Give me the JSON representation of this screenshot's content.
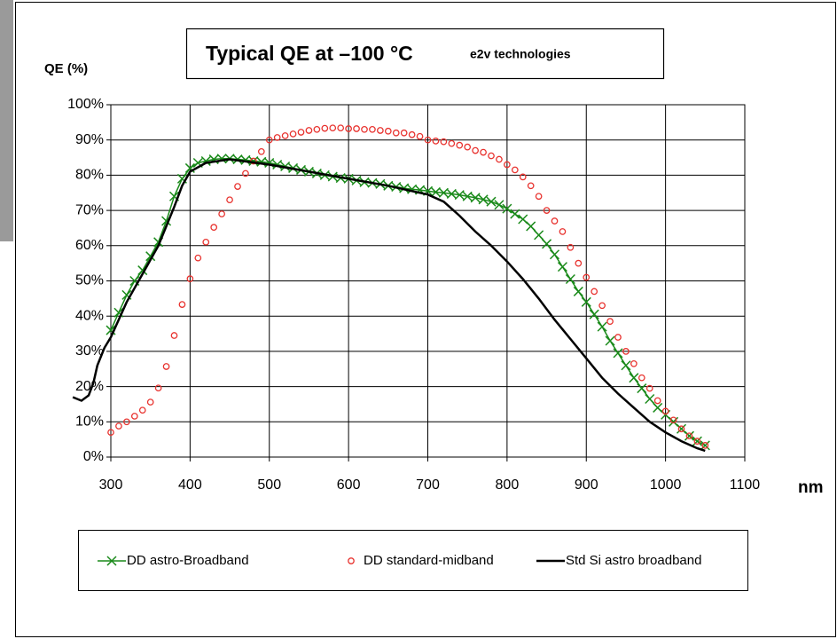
{
  "chart_data": {
    "type": "line",
    "title": "Typical QE at –100 °C",
    "subtitle": "e2v technologies",
    "y_label": "QE (%)",
    "x_label": "nm",
    "xlim": [
      300,
      1100
    ],
    "xticks": [
      300,
      400,
      500,
      600,
      700,
      800,
      900,
      1000,
      1100
    ],
    "ylim": [
      0,
      100
    ],
    "yticks": [
      {
        "value": 0,
        "label": "0%"
      },
      {
        "value": 10,
        "label": "10%"
      },
      {
        "value": 20,
        "label": "20%"
      },
      {
        "value": 30,
        "label": "30%"
      },
      {
        "value": 40,
        "label": "40%"
      },
      {
        "value": 50,
        "label": "50%"
      },
      {
        "value": 60,
        "label": "60%"
      },
      {
        "value": 70,
        "label": "70%"
      },
      {
        "value": 80,
        "label": "80%"
      },
      {
        "value": 90,
        "label": "90%"
      },
      {
        "value": 100,
        "label": "100%"
      }
    ],
    "grid": true,
    "legend": "bottom",
    "series": [
      {
        "name": "DD astro-Broadband",
        "color": "#1a8a1a",
        "marker": "x",
        "line": true,
        "x": [
          300,
          310,
          320,
          330,
          340,
          350,
          360,
          370,
          380,
          390,
          400,
          410,
          420,
          430,
          440,
          450,
          460,
          470,
          480,
          490,
          500,
          510,
          520,
          530,
          540,
          550,
          560,
          570,
          580,
          590,
          600,
          610,
          620,
          630,
          640,
          650,
          660,
          670,
          680,
          690,
          700,
          710,
          720,
          730,
          740,
          750,
          760,
          770,
          780,
          790,
          800,
          810,
          820,
          830,
          840,
          850,
          860,
          870,
          880,
          890,
          900,
          910,
          920,
          930,
          940,
          950,
          960,
          970,
          980,
          990,
          1000,
          1010,
          1020,
          1030,
          1040,
          1050
        ],
        "values": [
          36,
          41,
          46,
          50,
          53,
          57,
          61,
          67,
          74,
          79,
          82,
          83.5,
          84,
          84.5,
          84.7,
          84.7,
          84.5,
          84.3,
          84,
          83.8,
          83.5,
          83,
          82.5,
          82,
          81.5,
          81,
          80.5,
          80,
          79.6,
          79.2,
          79,
          78.5,
          78,
          77.8,
          77.5,
          77,
          76.7,
          76.3,
          76,
          75.8,
          75.5,
          75.2,
          75,
          74.7,
          74.4,
          74,
          73.6,
          73.1,
          72.5,
          71.6,
          70.5,
          69,
          67.5,
          65.5,
          63,
          60.5,
          57.5,
          54,
          50.5,
          47,
          44,
          40.5,
          37,
          33,
          29.5,
          26,
          22.5,
          19.5,
          16.5,
          14,
          12,
          10,
          8,
          6,
          4.5,
          3.3
        ]
      },
      {
        "name": "DD standard-midband",
        "color": "#e8322e",
        "marker": "o",
        "line": false,
        "x": [
          300,
          310,
          320,
          330,
          340,
          350,
          360,
          370,
          380,
          390,
          400,
          410,
          420,
          430,
          440,
          450,
          460,
          470,
          480,
          490,
          500,
          510,
          520,
          530,
          540,
          550,
          560,
          570,
          580,
          590,
          600,
          610,
          620,
          630,
          640,
          650,
          660,
          670,
          680,
          690,
          700,
          710,
          720,
          730,
          740,
          750,
          760,
          770,
          780,
          790,
          800,
          810,
          820,
          830,
          840,
          850,
          860,
          870,
          880,
          890,
          900,
          910,
          920,
          930,
          940,
          950,
          960,
          970,
          980,
          990,
          1000,
          1010,
          1020,
          1030,
          1040,
          1050
        ],
        "values": [
          7,
          8.8,
          10,
          11.6,
          13.3,
          15.6,
          19.6,
          25.7,
          34.5,
          43.3,
          50.6,
          56.5,
          61,
          65.2,
          69,
          73,
          76.8,
          80.5,
          84,
          86.7,
          90,
          90.7,
          91.2,
          91.7,
          92.2,
          92.7,
          93,
          93.3,
          93.4,
          93.4,
          93.2,
          93.2,
          93,
          93,
          92.7,
          92.5,
          92,
          92,
          91.5,
          91,
          90,
          89.7,
          89.5,
          89,
          88.5,
          88,
          87,
          86.5,
          85.5,
          84.5,
          83,
          81.5,
          79.5,
          77,
          74,
          70,
          67,
          64,
          59.5,
          55,
          51,
          47,
          43,
          38.5,
          34,
          30,
          26.5,
          22.5,
          19.5,
          16,
          13,
          10.5,
          8,
          6,
          4.5,
          3.3
        ]
      },
      {
        "name": "Std Si astro broadband",
        "color": "#000000",
        "marker": "none",
        "line": true,
        "x": [
          252,
          263,
          272,
          278,
          283,
          292,
          300,
          320,
          340,
          360,
          380,
          390,
          400,
          420,
          450,
          500,
          550,
          600,
          650,
          680,
          700,
          720,
          740,
          760,
          780,
          800,
          820,
          840,
          860,
          880,
          900,
          920,
          940,
          960,
          980,
          1000,
          1020,
          1040,
          1050
        ],
        "values": [
          17,
          16,
          17.5,
          21,
          26,
          31,
          34,
          44,
          52,
          60,
          71,
          77,
          81,
          83.5,
          84.5,
          83,
          81,
          79,
          77,
          75.5,
          74.5,
          72.5,
          68.5,
          64,
          60,
          55.5,
          50.5,
          45,
          39,
          33.5,
          28,
          22.5,
          18,
          14,
          10,
          7,
          4.5,
          2.5,
          1.8
        ]
      }
    ]
  }
}
